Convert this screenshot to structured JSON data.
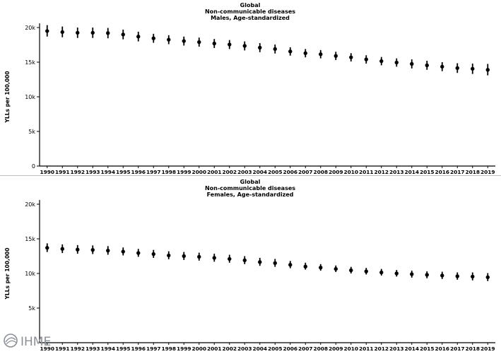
{
  "chart_data": [
    {
      "type": "scatter",
      "title_lines": [
        "Global",
        "Non-communicable diseases",
        "Males, Age-standardized"
      ],
      "xlabel": "",
      "ylabel": "YLLs per 100,000",
      "ylim": [
        0,
        20000
      ],
      "yticks": [
        "0",
        "5k",
        "10k",
        "15k",
        "20k"
      ],
      "ytick_values": [
        0,
        5000,
        10000,
        15000,
        20000
      ],
      "grid": false,
      "categories": [
        "1990",
        "1991",
        "1992",
        "1993",
        "1994",
        "1995",
        "1996",
        "1997",
        "1998",
        "1999",
        "2000",
        "2001",
        "2002",
        "2003",
        "2004",
        "2005",
        "2006",
        "2007",
        "2008",
        "2009",
        "2010",
        "2011",
        "2012",
        "2013",
        "2014",
        "2015",
        "2016",
        "2017",
        "2018",
        "2019"
      ],
      "values": [
        19500,
        19350,
        19250,
        19250,
        19200,
        19000,
        18700,
        18450,
        18250,
        18050,
        17900,
        17700,
        17550,
        17350,
        17100,
        16900,
        16550,
        16300,
        16150,
        15900,
        15700,
        15400,
        15150,
        14950,
        14750,
        14550,
        14350,
        14150,
        14050,
        13900
      ],
      "lower": [
        18700,
        18600,
        18500,
        18500,
        18450,
        18300,
        18000,
        17800,
        17600,
        17400,
        17250,
        17050,
        16900,
        16700,
        16450,
        16250,
        15950,
        15700,
        15550,
        15300,
        15100,
        14800,
        14550,
        14350,
        14100,
        13900,
        13700,
        13450,
        13300,
        13100
      ],
      "upper": [
        20350,
        20150,
        20000,
        20000,
        19950,
        19700,
        19400,
        19100,
        18900,
        18700,
        18550,
        18350,
        18200,
        18000,
        17750,
        17550,
        17150,
        16900,
        16750,
        16500,
        16300,
        16000,
        15750,
        15550,
        15400,
        15200,
        15000,
        14850,
        14800,
        14750
      ]
    },
    {
      "type": "scatter",
      "title_lines": [
        "Global",
        "Non-communicable diseases",
        "Females, Age-standardized"
      ],
      "xlabel": "",
      "ylabel": "YLLs per 100,000",
      "ylim": [
        0,
        20000
      ],
      "yticks": [
        "5k",
        "10k",
        "15k",
        "20k"
      ],
      "ytick_values": [
        5000,
        10000,
        15000,
        20000
      ],
      "grid": false,
      "categories": [
        "1990",
        "1991",
        "1992",
        "1993",
        "1994",
        "1995",
        "1996",
        "1997",
        "1998",
        "1999",
        "2000",
        "2001",
        "2002",
        "2003",
        "2004",
        "2005",
        "2006",
        "2007",
        "2008",
        "2009",
        "2010",
        "2011",
        "2012",
        "2013",
        "2014",
        "2015",
        "2016",
        "2017",
        "2018",
        "2019"
      ],
      "values": [
        13700,
        13550,
        13450,
        13400,
        13300,
        13150,
        12950,
        12800,
        12600,
        12500,
        12400,
        12250,
        12100,
        11900,
        11650,
        11500,
        11250,
        11000,
        10850,
        10650,
        10450,
        10300,
        10150,
        10000,
        9900,
        9800,
        9700,
        9600,
        9550,
        9450
      ],
      "lower": [
        13100,
        12950,
        12850,
        12800,
        12700,
        12600,
        12400,
        12250,
        12050,
        11950,
        11850,
        11700,
        11550,
        11350,
        11100,
        10950,
        10750,
        10550,
        10400,
        10200,
        10000,
        9850,
        9700,
        9550,
        9400,
        9300,
        9200,
        9100,
        9000,
        8900
      ],
      "upper": [
        14350,
        14200,
        14100,
        14050,
        13950,
        13750,
        13550,
        13400,
        13200,
        13100,
        13000,
        12850,
        12700,
        12500,
        12250,
        12100,
        11800,
        11550,
        11350,
        11150,
        10950,
        10800,
        10650,
        10500,
        10400,
        10300,
        10250,
        10150,
        10150,
        10050
      ]
    }
  ],
  "logo": {
    "text": "IHME",
    "color": "#8a8f96"
  }
}
